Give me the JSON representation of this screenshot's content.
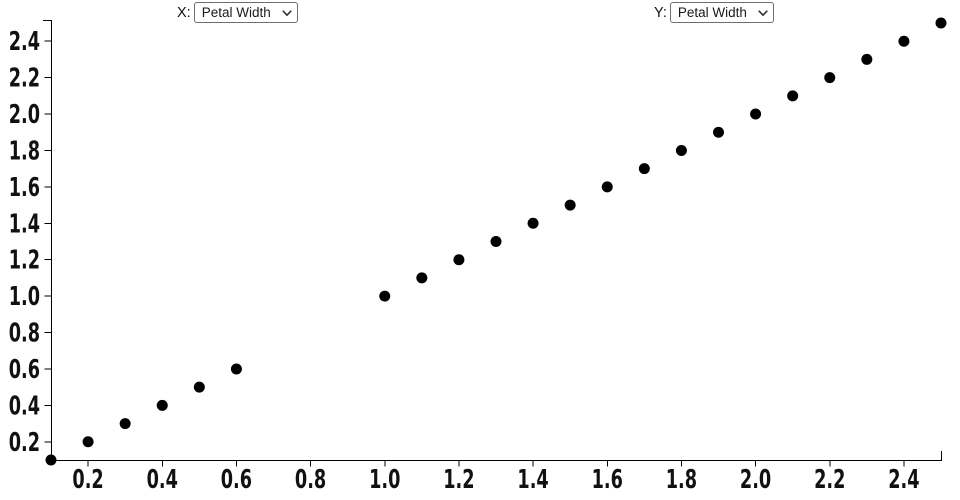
{
  "controls": {
    "x": {
      "label": "X:",
      "value": "Petal Width"
    },
    "y": {
      "label": "Y:",
      "value": "Petal Width"
    }
  },
  "chart_data": {
    "type": "scatter",
    "title": "",
    "xlabel": "",
    "ylabel": "",
    "x_variable": "Petal Width",
    "y_variable": "Petal Width",
    "points": [
      [
        0.1,
        0.1
      ],
      [
        0.2,
        0.2
      ],
      [
        0.3,
        0.3
      ],
      [
        0.4,
        0.4
      ],
      [
        0.5,
        0.5
      ],
      [
        0.6,
        0.6
      ],
      [
        1.0,
        1.0
      ],
      [
        1.1,
        1.1
      ],
      [
        1.2,
        1.2
      ],
      [
        1.3,
        1.3
      ],
      [
        1.4,
        1.4
      ],
      [
        1.5,
        1.5
      ],
      [
        1.6,
        1.6
      ],
      [
        1.7,
        1.7
      ],
      [
        1.8,
        1.8
      ],
      [
        1.9,
        1.9
      ],
      [
        2.0,
        2.0
      ],
      [
        2.1,
        2.1
      ],
      [
        2.2,
        2.2
      ],
      [
        2.3,
        2.3
      ],
      [
        2.4,
        2.4
      ],
      [
        2.5,
        2.5
      ]
    ],
    "xlim": [
      0.1,
      2.5
    ],
    "ylim": [
      0.1,
      2.5
    ],
    "x_ticks": [
      0.2,
      0.4,
      0.6,
      0.8,
      1.0,
      1.2,
      1.4,
      1.6,
      1.8,
      2.0,
      2.2,
      2.4
    ],
    "y_ticks": [
      0.2,
      0.4,
      0.6,
      0.8,
      1.0,
      1.2,
      1.4,
      1.6,
      1.8,
      2.0,
      2.2,
      2.4
    ],
    "tick_decimals": 1,
    "grid": false,
    "legend": false,
    "marker": {
      "shape": "circle",
      "radius": 5.5,
      "color": "#000000"
    },
    "axis_color": "#000000"
  }
}
